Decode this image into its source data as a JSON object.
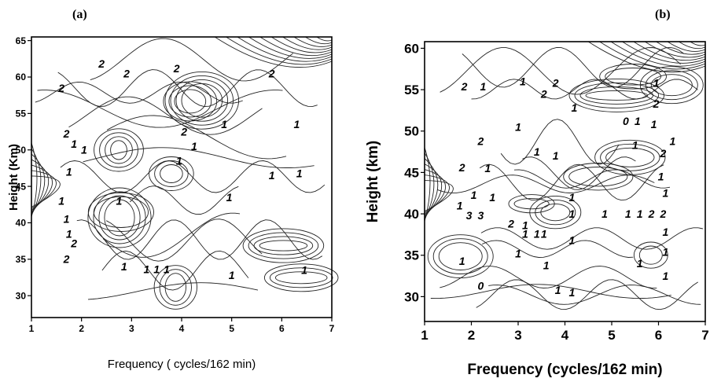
{
  "chart_data": [
    {
      "panel": "(a)",
      "type": "contour",
      "xlabel": "Frequency   ( cycles/162 min)",
      "ylabel": "Height (Km)",
      "xlim": [
        1,
        7
      ],
      "ylim": [
        27,
        65.5
      ],
      "xticks": [
        1,
        2,
        3,
        4,
        5,
        6,
        7
      ],
      "yticks": [
        30,
        35,
        40,
        45,
        50,
        55,
        60,
        65
      ],
      "contour_labels": [
        {
          "text": "2",
          "x": 2.4,
          "y": 61.8
        },
        {
          "text": "2",
          "x": 1.6,
          "y": 58.5
        },
        {
          "text": "2",
          "x": 2.9,
          "y": 60.5
        },
        {
          "text": "2",
          "x": 3.9,
          "y": 61.2
        },
        {
          "text": "2",
          "x": 5.8,
          "y": 60.5
        },
        {
          "text": "2",
          "x": 1.7,
          "y": 52.2
        },
        {
          "text": "1",
          "x": 1.85,
          "y": 50.8
        },
        {
          "text": "1",
          "x": 2.05,
          "y": 50.0
        },
        {
          "text": "2",
          "x": 4.05,
          "y": 52.5
        },
        {
          "text": "1",
          "x": 4.25,
          "y": 50.5
        },
        {
          "text": "1",
          "x": 4.85,
          "y": 53.5
        },
        {
          "text": "1",
          "x": 6.3,
          "y": 53.5
        },
        {
          "text": "1",
          "x": 3.95,
          "y": 48.5
        },
        {
          "text": "1",
          "x": 1.75,
          "y": 47.0
        },
        {
          "text": "1",
          "x": 5.8,
          "y": 46.5
        },
        {
          "text": "1",
          "x": 6.35,
          "y": 46.8
        },
        {
          "text": "1",
          "x": 2.75,
          "y": 43.0
        },
        {
          "text": "1",
          "x": 4.95,
          "y": 43.5
        },
        {
          "text": "1",
          "x": 1.6,
          "y": 43.0
        },
        {
          "text": "1",
          "x": 1.7,
          "y": 40.5
        },
        {
          "text": "1",
          "x": 1.75,
          "y": 38.5
        },
        {
          "text": "2",
          "x": 1.85,
          "y": 37.2
        },
        {
          "text": "2",
          "x": 1.7,
          "y": 35.0
        },
        {
          "text": "1",
          "x": 2.85,
          "y": 34.0
        },
        {
          "text": "1",
          "x": 3.3,
          "y": 33.6
        },
        {
          "text": "1",
          "x": 3.5,
          "y": 33.6
        },
        {
          "text": "1",
          "x": 3.7,
          "y": 33.6
        },
        {
          "text": "1",
          "x": 5.0,
          "y": 32.8
        },
        {
          "text": "1",
          "x": 6.45,
          "y": 33.5
        }
      ]
    },
    {
      "panel": "(b)",
      "type": "contour",
      "xlabel": "Frequency (cycles/162 min)",
      "ylabel": "Height (km)",
      "xlim": [
        1,
        7
      ],
      "ylim": [
        27,
        60.8
      ],
      "xticks": [
        1,
        2,
        3,
        4,
        5,
        6,
        7
      ],
      "yticks": [
        30,
        35,
        40,
        45,
        50,
        55,
        60
      ],
      "contour_labels": [
        {
          "text": "2",
          "x": 1.85,
          "y": 55.4
        },
        {
          "text": "1",
          "x": 2.25,
          "y": 55.4
        },
        {
          "text": "1",
          "x": 3.1,
          "y": 56.0
        },
        {
          "text": "2",
          "x": 3.8,
          "y": 55.8
        },
        {
          "text": "2",
          "x": 3.55,
          "y": 54.5
        },
        {
          "text": "1",
          "x": 5.95,
          "y": 55.8
        },
        {
          "text": "1",
          "x": 4.2,
          "y": 52.8
        },
        {
          "text": "2",
          "x": 5.95,
          "y": 53.3
        },
        {
          "text": "0",
          "x": 5.3,
          "y": 51.2
        },
        {
          "text": "1",
          "x": 5.55,
          "y": 51.2
        },
        {
          "text": "1",
          "x": 5.9,
          "y": 50.8
        },
        {
          "text": "1",
          "x": 3.0,
          "y": 50.5
        },
        {
          "text": "2",
          "x": 2.2,
          "y": 48.8
        },
        {
          "text": "1",
          "x": 3.4,
          "y": 47.5
        },
        {
          "text": "1",
          "x": 3.8,
          "y": 47.0
        },
        {
          "text": "1",
          "x": 5.5,
          "y": 48.3
        },
        {
          "text": "1",
          "x": 6.3,
          "y": 48.8
        },
        {
          "text": "2",
          "x": 6.1,
          "y": 47.3
        },
        {
          "text": "2",
          "x": 1.8,
          "y": 45.6
        },
        {
          "text": "1",
          "x": 2.35,
          "y": 45.5
        },
        {
          "text": "1",
          "x": 6.05,
          "y": 44.5
        },
        {
          "text": "1",
          "x": 2.05,
          "y": 42.3
        },
        {
          "text": "1",
          "x": 2.45,
          "y": 42.0
        },
        {
          "text": "1",
          "x": 4.15,
          "y": 42.0
        },
        {
          "text": "1",
          "x": 6.15,
          "y": 42.5
        },
        {
          "text": "1",
          "x": 1.75,
          "y": 41.0
        },
        {
          "text": "1",
          "x": 4.15,
          "y": 40.0
        },
        {
          "text": "1",
          "x": 4.85,
          "y": 40.0
        },
        {
          "text": "1",
          "x": 5.35,
          "y": 40.0
        },
        {
          "text": "1",
          "x": 5.6,
          "y": 40.0
        },
        {
          "text": "2",
          "x": 5.85,
          "y": 40.0
        },
        {
          "text": "2",
          "x": 6.1,
          "y": 40.0
        },
        {
          "text": "3",
          "x": 1.95,
          "y": 39.8
        },
        {
          "text": "3",
          "x": 2.2,
          "y": 39.8
        },
        {
          "text": "2",
          "x": 2.85,
          "y": 38.8
        },
        {
          "text": "1",
          "x": 3.15,
          "y": 38.6
        },
        {
          "text": "1",
          "x": 3.15,
          "y": 37.6
        },
        {
          "text": "1",
          "x": 3.4,
          "y": 37.6
        },
        {
          "text": "1",
          "x": 3.55,
          "y": 37.6
        },
        {
          "text": "1",
          "x": 6.15,
          "y": 37.8
        },
        {
          "text": "1",
          "x": 4.15,
          "y": 36.8
        },
        {
          "text": "1",
          "x": 3.0,
          "y": 35.2
        },
        {
          "text": "1",
          "x": 6.15,
          "y": 35.4
        },
        {
          "text": "1",
          "x": 1.8,
          "y": 34.3
        },
        {
          "text": "1",
          "x": 5.6,
          "y": 34.0
        },
        {
          "text": "1",
          "x": 3.6,
          "y": 33.8
        },
        {
          "text": "1",
          "x": 6.15,
          "y": 32.5
        },
        {
          "text": "0",
          "x": 2.2,
          "y": 31.3
        },
        {
          "text": "1",
          "x": 3.85,
          "y": 30.8
        },
        {
          "text": "1",
          "x": 4.15,
          "y": 30.5
        }
      ]
    }
  ]
}
